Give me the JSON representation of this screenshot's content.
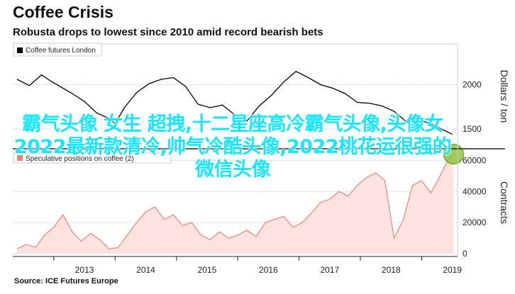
{
  "title": "Coffee Crisis",
  "subtitle": "Robusta drops to lowest since 2010 amid record bearish bets",
  "source": "Source: ICE Futures Europe",
  "overlay_text": "霸气头像 女生 超拽,十二星座高冷霸气头像,头像女2022最新款清冷,帅气冷酷头像,2022桃花运很强的微信头像",
  "colors": {
    "price": "#000000",
    "positions": "#e8837a",
    "highlight": "#8dc63f",
    "overlay": "#18e5ff"
  },
  "chart_data": [
    {
      "type": "line",
      "legend": "Coffee futures London",
      "ylabel": "Dollars / ton",
      "yticks": [
        1500,
        2000
      ],
      "ylim": [
        1300,
        2300
      ],
      "xlim": [
        2012.4,
        2019.55
      ],
      "x": [
        2012.4,
        2012.6,
        2012.8,
        2012.95,
        2013.1,
        2013.3,
        2013.5,
        2013.7,
        2013.9,
        2014.0,
        2014.15,
        2014.35,
        2014.55,
        2014.75,
        2014.95,
        2015.15,
        2015.35,
        2015.55,
        2015.75,
        2015.95,
        2016.15,
        2016.35,
        2016.55,
        2016.75,
        2016.95,
        2017.15,
        2017.35,
        2017.55,
        2017.75,
        2017.95,
        2018.15,
        2018.35,
        2018.55,
        2018.75,
        2018.95,
        2019.15,
        2019.35,
        2019.5
      ],
      "y": [
        2060,
        1990,
        2110,
        2040,
        1980,
        1900,
        1810,
        1680,
        1620,
        1560,
        1740,
        1910,
        2010,
        2060,
        2080,
        1980,
        1780,
        1740,
        1770,
        1660,
        1590,
        1760,
        1880,
        2030,
        2150,
        2080,
        2000,
        1960,
        1900,
        1800,
        1790,
        1760,
        1700,
        1580,
        1600,
        1560,
        1490,
        1440
      ]
    },
    {
      "type": "area",
      "legend": "Speculative positions on coffee (2)",
      "ylabel": "Contracts",
      "yticks": [
        0,
        20000,
        40000,
        60000
      ],
      "ylim": [
        0,
        62000
      ],
      "xlim": [
        2012.4,
        2019.55
      ],
      "x": [
        2012.4,
        2012.55,
        2012.7,
        2012.85,
        2013.0,
        2013.15,
        2013.3,
        2013.45,
        2013.6,
        2013.75,
        2013.9,
        2014.05,
        2014.2,
        2014.35,
        2014.5,
        2014.65,
        2014.8,
        2014.95,
        2015.1,
        2015.25,
        2015.4,
        2015.55,
        2015.7,
        2015.85,
        2016.0,
        2016.15,
        2016.3,
        2016.45,
        2016.6,
        2016.75,
        2016.9,
        2017.05,
        2017.2,
        2017.35,
        2017.5,
        2017.65,
        2017.8,
        2017.95,
        2018.1,
        2018.25,
        2018.4,
        2018.55,
        2018.7,
        2018.85,
        2019.0,
        2019.15,
        2019.3,
        2019.45,
        2019.52
      ],
      "y": [
        3000,
        6000,
        4000,
        12000,
        17000,
        25000,
        14000,
        8000,
        13000,
        9000,
        3000,
        4000,
        12000,
        20000,
        27000,
        30000,
        22000,
        25000,
        18000,
        20000,
        12000,
        9000,
        14000,
        10000,
        12000,
        15000,
        11000,
        20000,
        22000,
        24000,
        17000,
        20000,
        26000,
        33000,
        35000,
        40000,
        37000,
        44000,
        49000,
        52000,
        47000,
        10000,
        22000,
        44000,
        47000,
        39000,
        50000,
        62000,
        64000
      ]
    }
  ],
  "x_axis": {
    "labels": [
      "2013",
      "2014",
      "2015",
      "2016",
      "2017",
      "2018",
      "2019"
    ]
  }
}
